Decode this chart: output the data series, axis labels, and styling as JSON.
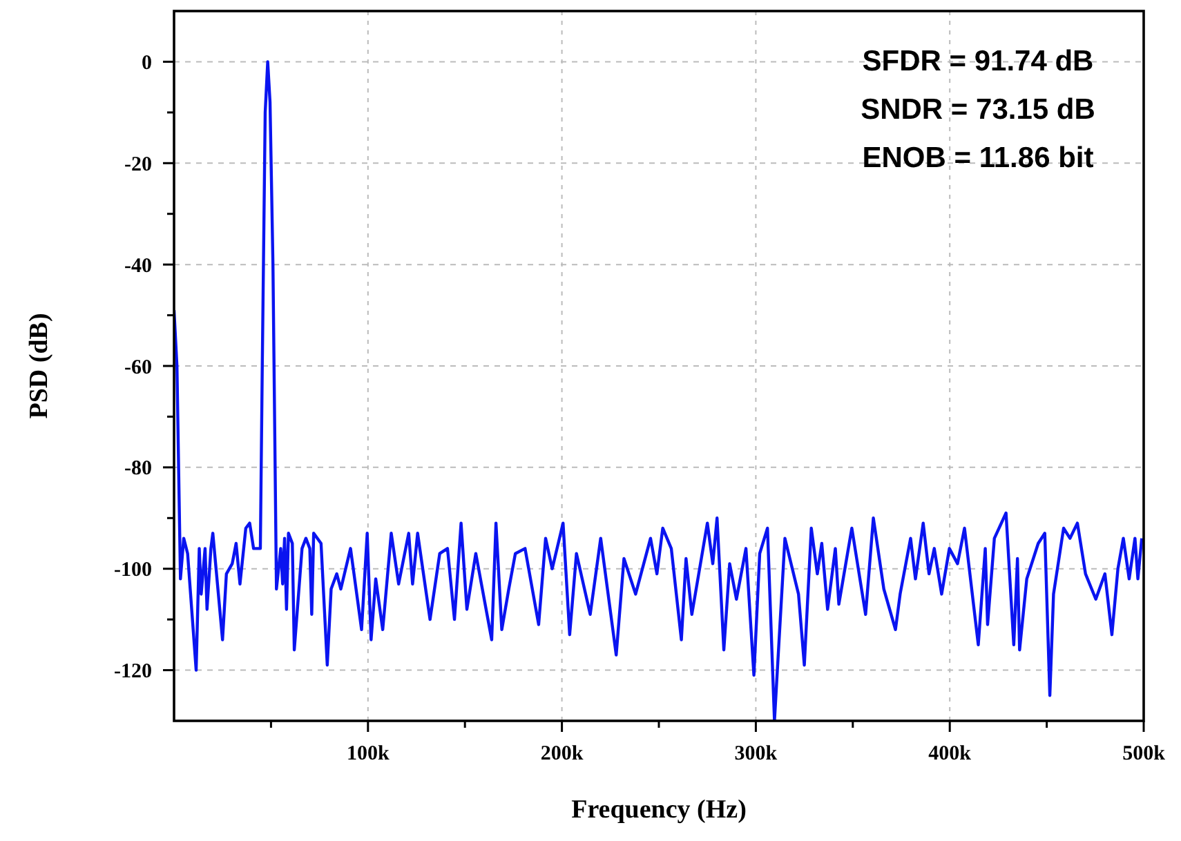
{
  "chart_data": {
    "type": "line",
    "xlabel": "Frequency (Hz)",
    "ylabel": "PSD (dB)",
    "annotations": [
      "SFDR = 91.74 dB",
      "SNDR = 73.15 dB",
      "ENOB = 11.86 bit"
    ],
    "xlim": [
      0,
      500000
    ],
    "ylim": [
      -130,
      10
    ],
    "xticks": [
      {
        "value": 50000,
        "label": null
      },
      {
        "value": 100000,
        "label": "100k"
      },
      {
        "value": 150000,
        "label": null
      },
      {
        "value": 200000,
        "label": "200k"
      },
      {
        "value": 250000,
        "label": null
      },
      {
        "value": 300000,
        "label": "300k"
      },
      {
        "value": 350000,
        "label": null
      },
      {
        "value": 400000,
        "label": "400k"
      },
      {
        "value": 450000,
        "label": null
      },
      {
        "value": 500000,
        "label": "500k"
      }
    ],
    "yticks": [
      -120,
      {
        "value": -110,
        "label": null
      },
      -100,
      {
        "value": -90,
        "label": null
      },
      -80,
      {
        "value": -70,
        "label": null
      },
      -60,
      {
        "value": -50,
        "label": null
      },
      -40,
      {
        "value": -30,
        "label": null
      },
      -20,
      {
        "value": -10,
        "label": null
      },
      0
    ],
    "grid": true,
    "line_style": "solid",
    "marker": "none",
    "series": [
      {
        "color": "#0a14f0",
        "x": [
          0,
          1500,
          3300,
          5000,
          7000,
          11400,
          13000,
          14000,
          16000,
          17000,
          19000,
          20000,
          25000,
          27000,
          30000,
          32000,
          34000,
          37000,
          39000,
          41000,
          43000,
          44500,
          45500,
          47000,
          48300,
          49500,
          51000,
          52800,
          55000,
          56000,
          57000,
          58000,
          59000,
          61000,
          62000,
          66000,
          68000,
          70000,
          71000,
          72000,
          75800,
          79000,
          81000,
          83900,
          86000,
          91000,
          96700,
          99600,
          101600,
          104000,
          107600,
          112000,
          115800,
          121000,
          123000,
          125600,
          132000,
          137000,
          141000,
          144600,
          148000,
          151000,
          155600,
          163800,
          166000,
          169000,
          172600,
          176000,
          181000,
          188000,
          191600,
          195000,
          200600,
          204000,
          207500,
          214600,
          220000,
          228000,
          232000,
          238000,
          245700,
          249000,
          252000,
          256400,
          261600,
          264000,
          267000,
          275000,
          277800,
          280000,
          283500,
          286500,
          290000,
          294900,
          299000,
          302000,
          306000,
          309600,
          315000,
          322000,
          325000,
          328600,
          331700,
          334000,
          337000,
          341000,
          342800,
          349500,
          356600,
          360600,
          366000,
          372000,
          374400,
          379800,
          382300,
          386300,
          389300,
          392000,
          395800,
          399800,
          404000,
          407600,
          414700,
          418300,
          419500,
          423000,
          429000,
          433000,
          434900,
          436000,
          439700,
          445600,
          449000,
          451600,
          453500,
          458700,
          462000,
          465800,
          470000,
          475300,
          480000,
          483600,
          486700,
          489500,
          492500,
          495500,
          497000,
          499000
        ],
        "values": [
          -49,
          -60,
          -102,
          -94,
          -97,
          -120,
          -96,
          -105,
          -96,
          -108,
          -96,
          -93,
          -114,
          -101,
          -99,
          -95,
          -103,
          -92,
          -91,
          -96,
          -96,
          -96,
          -60,
          -10,
          0,
          -8,
          -40,
          -104,
          -96,
          -103,
          -94,
          -108,
          -93,
          -95,
          -116,
          -96,
          -94,
          -96,
          -109,
          -93,
          -95,
          -119,
          -104,
          -101,
          -104,
          -96,
          -112,
          -93,
          -114,
          -102,
          -112,
          -93,
          -103,
          -93,
          -103,
          -93,
          -110,
          -97,
          -96,
          -110,
          -91,
          -108,
          -97,
          -114,
          -91,
          -112,
          -104,
          -97,
          -96,
          -111,
          -94,
          -100,
          -91,
          -113,
          -97,
          -109,
          -94,
          -117,
          -98,
          -105,
          -94,
          -101,
          -92,
          -96,
          -114,
          -98,
          -109,
          -91,
          -99,
          -90,
          -116,
          -99,
          -106,
          -96,
          -121,
          -97,
          -92,
          -130,
          -94,
          -105,
          -119,
          -92,
          -101,
          -95,
          -108,
          -96,
          -107,
          -92,
          -109,
          -90,
          -104,
          -112,
          -105,
          -94,
          -102,
          -91,
          -101,
          -96,
          -105,
          -96,
          -99,
          -92,
          -115,
          -96,
          -111,
          -94,
          -89,
          -115,
          -98,
          -116,
          -102,
          -95,
          -93,
          -125,
          -105,
          -92,
          -94,
          -91,
          -101,
          -106,
          -101,
          -113,
          -100,
          -94,
          -102,
          -94,
          -102,
          -94
        ]
      }
    ]
  }
}
